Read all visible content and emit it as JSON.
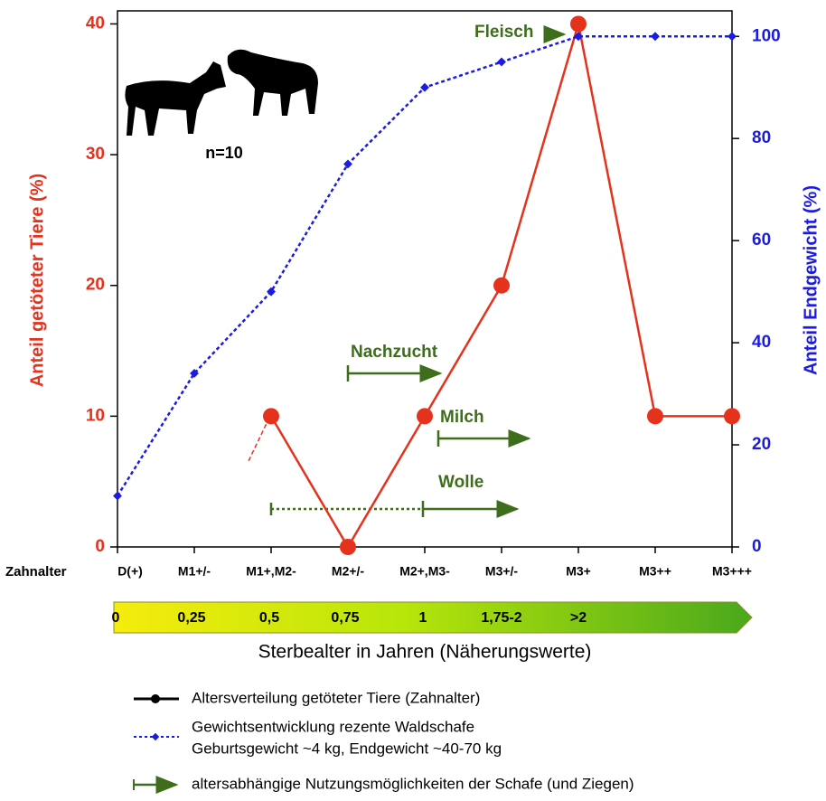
{
  "chart_data": {
    "type": "line",
    "ylabel": "Anteil getöteter Tiere (%)",
    "y2label": "Anteil Endgewicht (%)",
    "xlabel": "Sterbealter in Jahren (Näherungswerte)",
    "xaxis_title": "Zahnalter",
    "categories": [
      "D(+)",
      "M1+/-",
      "M1+,M2-",
      "M2+/-",
      "M2+,M3-",
      "M3+/-",
      "M3+",
      "M3++",
      "M3+++"
    ],
    "age_scale": [
      "0",
      "0,25",
      "0,5",
      "0,75",
      "1",
      "1,75-2",
      ">2"
    ],
    "series": [
      {
        "name": "Altersverteilung getöteter Tiere (Zahnalter)",
        "color": "#e5321d",
        "values": [
          null,
          null,
          10,
          0,
          10,
          20,
          40,
          10,
          10
        ]
      },
      {
        "name": "Gewichtsentwicklung rezente Waldschafe",
        "note": "Geburtsgewicht ~4 kg, Endgewicht ~40-70 kg",
        "color": "#1c1ce0",
        "axis": "y2",
        "values": [
          10,
          34,
          50,
          75,
          90,
          95,
          100,
          100,
          100
        ]
      }
    ],
    "usage_legend": "altersabhängige Nutzungsmöglichkeiten der Schafe (und Ziegen)",
    "annotations": [
      "Fleisch",
      "Nachzucht",
      "Milch",
      "Wolle",
      "n=10"
    ],
    "ylim": [
      0,
      41
    ],
    "yticks": [
      0,
      10,
      20,
      30,
      40
    ],
    "y2lim": [
      0,
      105
    ],
    "y2ticks": [
      0,
      20,
      40,
      60,
      80,
      100
    ]
  }
}
